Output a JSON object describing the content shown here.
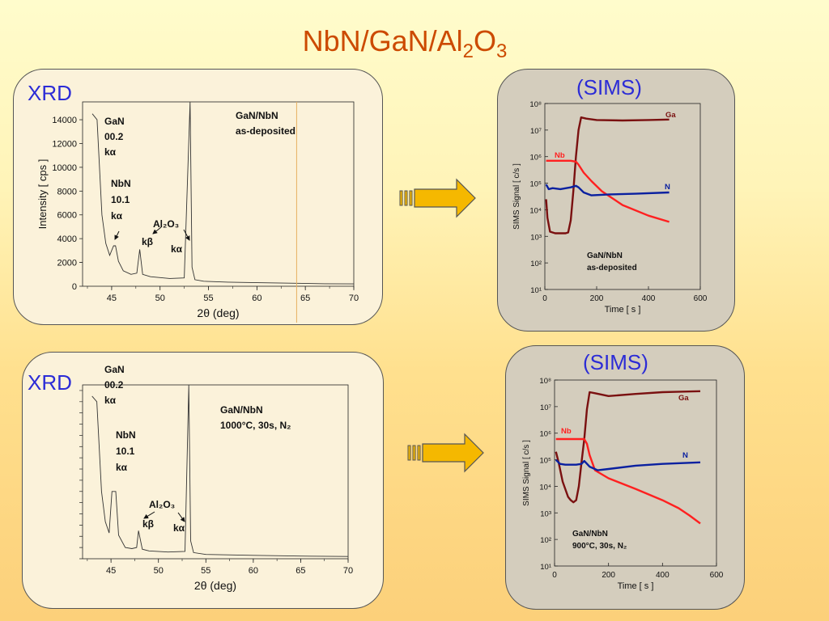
{
  "page": {
    "title_main": "NbN/GaN/Al",
    "title_sub1": "2",
    "title_mid": "O",
    "title_sub2": "3"
  },
  "colors": {
    "accent": "#cc4a00",
    "label_blue": "#2c2cd6",
    "ga": "#7a1010",
    "nb": "#ff2020",
    "n": "#0a20a0",
    "arrow": "#f5b800"
  },
  "chart_data": [
    {
      "type": "line",
      "panel_label": "XRD",
      "xlabel": "2θ (deg)",
      "ylabel": "Intensity [ cps ]",
      "xlim": [
        42,
        70
      ],
      "ylim": [
        0,
        15500
      ],
      "xticks": [
        "45",
        "50",
        "55",
        "60",
        "65",
        "70"
      ],
      "yticks": [
        "0",
        "2000",
        "4000",
        "6000",
        "8000",
        "10000",
        "12000",
        "14000"
      ],
      "sample": [
        "GaN/NbN",
        "as-deposited"
      ],
      "annotations": {
        "gan": [
          "GaN",
          "00.2",
          "kα"
        ],
        "nbn": [
          "NbN",
          "10.1",
          "kα"
        ],
        "al2o3": "Al₂O₃",
        "kb": "kβ",
        "ka": "kα"
      },
      "series": [
        {
          "x": [
            43,
            43.5,
            44,
            44.4,
            44.8,
            45.2,
            45.4,
            45.7,
            46.2,
            47,
            47.6,
            47.9,
            48.2,
            49,
            51,
            52.5,
            53.1,
            53.3,
            53.6,
            54.5,
            57,
            60,
            64,
            67,
            70
          ],
          "y": [
            14500,
            14000,
            6000,
            3600,
            2600,
            3400,
            3400,
            2100,
            1300,
            1000,
            1100,
            3100,
            1000,
            800,
            650,
            700,
            15500,
            1600,
            550,
            420,
            350,
            300,
            250,
            210,
            200
          ]
        }
      ]
    },
    {
      "type": "line",
      "panel_label": "(SIMS)",
      "xlabel": "Time [ s ]",
      "ylabel": "SIMS Signal [ c/s ]",
      "xlim": [
        0,
        600
      ],
      "ylog": true,
      "ylim": [
        10,
        100000000
      ],
      "xticks": [
        "0",
        "200",
        "400",
        "600"
      ],
      "yticks": [
        "10¹",
        "10²",
        "10³",
        "10⁴",
        "10⁵",
        "10⁶",
        "10⁷",
        "10⁸"
      ],
      "sample": [
        "GaN/NbN",
        "as-deposited"
      ],
      "series": [
        {
          "name": "Ga",
          "x": [
            5,
            10,
            20,
            40,
            60,
            80,
            90,
            100,
            110,
            120,
            130,
            140,
            160,
            200,
            300,
            400,
            480
          ],
          "y": [
            25000,
            5000,
            1500,
            1300,
            1300,
            1300,
            1400,
            4000,
            50000,
            1000000,
            10000000,
            30000000,
            27000000,
            24000000,
            23000000,
            24000000,
            25000000
          ]
        },
        {
          "name": "Nb",
          "x": [
            5,
            50,
            100,
            120,
            130,
            150,
            180,
            220,
            300,
            400,
            480
          ],
          "y": [
            700000,
            700000,
            700000,
            650000,
            500000,
            250000,
            120000,
            50000,
            15000,
            6000,
            3500
          ]
        },
        {
          "name": "N",
          "x": [
            5,
            15,
            30,
            60,
            100,
            120,
            130,
            150,
            180,
            250,
            350,
            480
          ],
          "y": [
            90000,
            60000,
            65000,
            60000,
            70000,
            80000,
            70000,
            45000,
            35000,
            38000,
            40000,
            45000
          ]
        }
      ]
    },
    {
      "type": "line",
      "panel_label": "XRD",
      "xlabel": "2θ (deg)",
      "xlim": [
        42,
        70
      ],
      "ylim": [
        0,
        15500
      ],
      "xticks": [
        "45",
        "50",
        "55",
        "60",
        "65",
        "70"
      ],
      "sample": [
        "GaN/NbN",
        "1000°C, 30s, N₂"
      ],
      "annotations": {
        "gan": [
          "GaN",
          "00.2",
          "kα"
        ],
        "nbn": [
          "NbN",
          "10.1",
          "kα"
        ],
        "al2o3": "Al₂O₃",
        "kb": "kβ",
        "ka": "kα"
      },
      "series": [
        {
          "x": [
            43,
            43.5,
            44,
            44.4,
            44.8,
            45.1,
            45.3,
            45.5,
            45.8,
            46.5,
            47.2,
            47.7,
            47.9,
            48.3,
            49,
            51,
            52.8,
            53.2,
            53.4,
            53.7,
            55,
            60,
            65,
            70
          ],
          "y": [
            14500,
            14000,
            6000,
            3300,
            2300,
            6000,
            6000,
            6000,
            2100,
            1000,
            900,
            1000,
            2500,
            850,
            700,
            600,
            650,
            15500,
            1600,
            550,
            380,
            300,
            240,
            200
          ]
        }
      ]
    },
    {
      "type": "line",
      "panel_label": "(SIMS)",
      "xlabel": "Time [ s ]",
      "ylabel": "SIMS Signal [ c/s ]",
      "xlim": [
        0,
        600
      ],
      "ylog": true,
      "ylim": [
        10,
        100000000
      ],
      "xticks": [
        "0",
        "200",
        "400",
        "600"
      ],
      "yticks": [
        "10¹",
        "10²",
        "10³",
        "10⁴",
        "10⁵",
        "10⁶",
        "10⁷",
        "10⁸"
      ],
      "sample": [
        "GaN/NbN",
        "900°C, 30s, N₂"
      ],
      "series": [
        {
          "name": "Ga",
          "x": [
            5,
            15,
            30,
            50,
            60,
            70,
            80,
            90,
            100,
            110,
            120,
            130,
            150,
            200,
            300,
            400,
            450,
            540
          ],
          "y": [
            200000,
            80000,
            15000,
            4000,
            3000,
            2500,
            3000,
            10000,
            80000,
            600000,
            8000000,
            35000000,
            32000000,
            25000000,
            30000000,
            35000000,
            36000000,
            38000000
          ]
        },
        {
          "name": "Nb",
          "x": [
            5,
            60,
            110,
            120,
            130,
            150,
            200,
            300,
            400,
            460,
            500,
            540
          ],
          "y": [
            600000,
            600000,
            600000,
            400000,
            150000,
            40000,
            20000,
            8000,
            3000,
            1500,
            800,
            400
          ]
        },
        {
          "name": "N",
          "x": [
            5,
            20,
            40,
            80,
            100,
            110,
            130,
            160,
            200,
            300,
            400,
            540
          ],
          "y": [
            100000,
            70000,
            65000,
            65000,
            70000,
            90000,
            55000,
            40000,
            45000,
            60000,
            70000,
            80000
          ]
        }
      ]
    }
  ]
}
